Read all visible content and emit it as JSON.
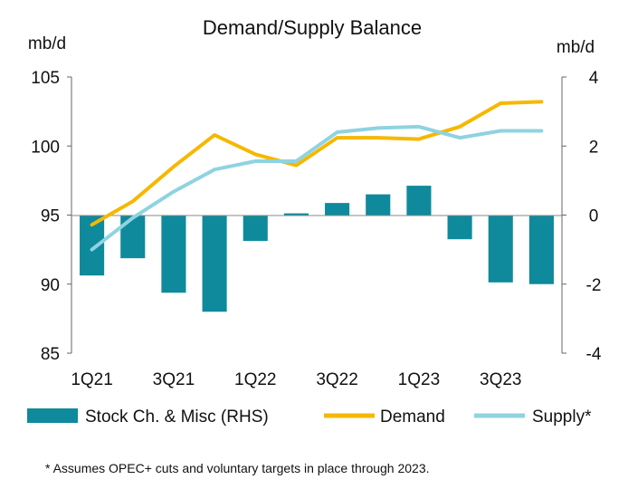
{
  "chart_data": {
    "type": "bar+line",
    "title": "Demand/Supply Balance",
    "left_axis_label": "mb/d",
    "right_axis_label": "mb/d",
    "left_ylim": [
      85,
      105
    ],
    "left_ticks": [
      105,
      100,
      95,
      90,
      85
    ],
    "right_ylim": [
      -4,
      4
    ],
    "right_ticks": [
      4,
      2,
      0,
      -2,
      -4
    ],
    "categories": [
      "1Q21",
      "2Q21",
      "3Q21",
      "4Q21",
      "1Q22",
      "2Q22",
      "3Q22",
      "4Q22",
      "1Q23",
      "2Q23",
      "3Q23",
      "4Q23"
    ],
    "x_tick_labels": [
      "1Q21",
      "3Q21",
      "1Q22",
      "3Q22",
      "1Q23",
      "3Q23"
    ],
    "series": [
      {
        "name": "Stock Ch. & Misc (RHS)",
        "kind": "bar",
        "axis": "right",
        "color": "#0e8a9c",
        "values": [
          -1.75,
          -1.25,
          -2.25,
          -2.8,
          -0.75,
          0.05,
          0.35,
          0.6,
          0.85,
          -0.7,
          -1.95,
          -2.0
        ]
      },
      {
        "name": "Demand",
        "kind": "line",
        "axis": "left",
        "color": "#f5b800",
        "values": [
          94.3,
          96.0,
          98.5,
          100.8,
          99.4,
          98.6,
          100.6,
          100.6,
          100.5,
          101.4,
          103.1,
          103.2
        ]
      },
      {
        "name": "Supply*",
        "kind": "line",
        "axis": "left",
        "color": "#8fd3e0",
        "values": [
          92.5,
          94.8,
          96.7,
          98.3,
          98.9,
          98.9,
          101.0,
          101.3,
          101.4,
          100.6,
          101.1,
          101.1
        ]
      }
    ],
    "legend": [
      {
        "label": "Stock Ch. & Misc (RHS)",
        "swatch": "bar",
        "color": "#0e8a9c"
      },
      {
        "label": "Demand",
        "swatch": "line",
        "color": "#f5b800"
      },
      {
        "label": "Supply*",
        "swatch": "line",
        "color": "#8fd3e0"
      }
    ],
    "legend_position": "bottom",
    "footnote": "* Assumes OPEC+ cuts and voluntary targets in place through 2023.",
    "grid": false
  }
}
